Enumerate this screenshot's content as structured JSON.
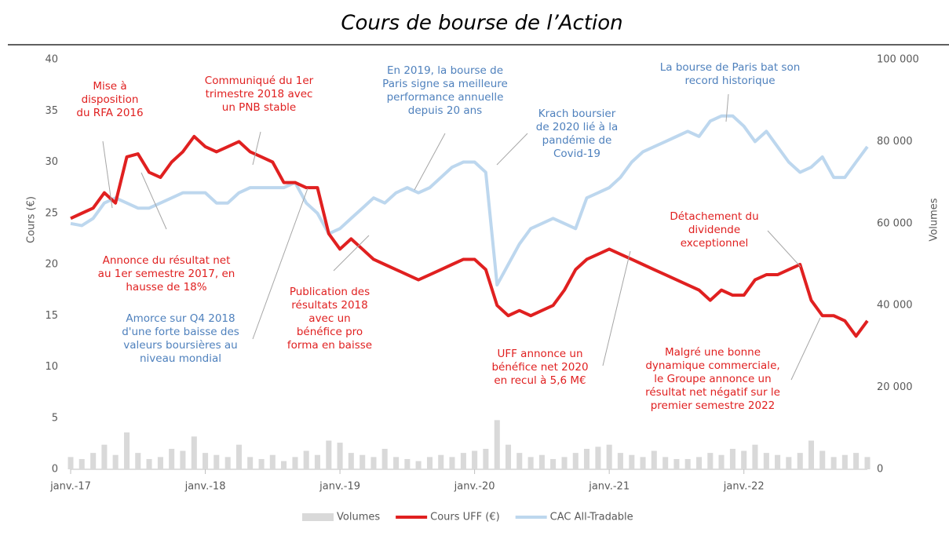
{
  "chart_data": {
    "type": "line",
    "title": "Cours de bourse de l’Action",
    "ylabel": "Cours (€)",
    "y2label": "Volumes",
    "xlim": [
      2017,
      2022.917
    ],
    "xticks": [
      {
        "value": 2017,
        "label": "janv.-17"
      },
      {
        "value": 2018,
        "label": "janv.-18"
      },
      {
        "value": 2019,
        "label": "janv.-19"
      },
      {
        "value": 2020,
        "label": "janv.-20"
      },
      {
        "value": 2021,
        "label": "janv.-21"
      },
      {
        "value": 2022,
        "label": "janv.-22"
      }
    ],
    "ylim": [
      0,
      40
    ],
    "yticks": [
      0,
      5,
      10,
      15,
      20,
      25,
      30,
      35,
      40
    ],
    "y2lim": [
      0,
      100000
    ],
    "y2ticks": [
      0,
      {
        "value": 20000,
        "label": "20 000"
      },
      {
        "value": 40000,
        "label": "40 000"
      },
      {
        "value": 60000,
        "label": "60 000"
      },
      {
        "value": 80000,
        "label": "80 000"
      },
      {
        "value": 100000,
        "label": "100 000"
      }
    ],
    "x": [
      2017,
      2017.083,
      2017.167,
      2017.25,
      2017.333,
      2017.417,
      2017.5,
      2017.583,
      2017.667,
      2017.75,
      2017.833,
      2017.917,
      2018,
      2018.083,
      2018.167,
      2018.25,
      2018.333,
      2018.417,
      2018.5,
      2018.583,
      2018.667,
      2018.75,
      2018.833,
      2018.917,
      2019,
      2019.083,
      2019.167,
      2019.25,
      2019.333,
      2019.417,
      2019.5,
      2019.583,
      2019.667,
      2019.75,
      2019.833,
      2019.917,
      2020,
      2020.083,
      2020.167,
      2020.25,
      2020.333,
      2020.417,
      2020.5,
      2020.583,
      2020.667,
      2020.75,
      2020.833,
      2020.917,
      2021,
      2021.083,
      2021.167,
      2021.25,
      2021.333,
      2021.417,
      2021.5,
      2021.583,
      2021.667,
      2021.75,
      2021.833,
      2021.917,
      2022,
      2022.083,
      2022.167,
      2022.25,
      2022.333,
      2022.417,
      2022.5,
      2022.583,
      2022.667,
      2022.75,
      2022.833,
      2022.917
    ],
    "series": [
      {
        "name": "Volumes",
        "color": "#d9d9d9",
        "axis": "y2",
        "kind": "bar",
        "values": [
          3000,
          2500,
          4000,
          6000,
          3500,
          9000,
          4000,
          2500,
          3000,
          5000,
          4500,
          8000,
          4000,
          3500,
          3000,
          6000,
          3000,
          2500,
          3500,
          2000,
          3000,
          4500,
          3500,
          7000,
          6500,
          4000,
          3500,
          3000,
          5000,
          3000,
          2500,
          2000,
          3000,
          3500,
          3000,
          4000,
          4500,
          5000,
          12000,
          6000,
          4000,
          3000,
          3500,
          2500,
          3000,
          4000,
          5000,
          5500,
          6000,
          4000,
          3500,
          3000,
          4500,
          3000,
          2500,
          2500,
          3000,
          4000,
          3500,
          5000,
          4500,
          6000,
          4000,
          3500,
          3000,
          4000,
          7000,
          4500,
          3000,
          3500,
          4000,
          3000
        ]
      },
      {
        "name": "Cours UFF (€)",
        "color": "#e02020",
        "kind": "line",
        "values": [
          24.5,
          25,
          25.5,
          27,
          26,
          30.5,
          30.8,
          29,
          28.5,
          30,
          31,
          32.5,
          31.5,
          31,
          31.5,
          32,
          31,
          30.5,
          30,
          28,
          28,
          27.5,
          27.5,
          23,
          21.5,
          22.5,
          21.5,
          20.5,
          20,
          19.5,
          19,
          18.5,
          19,
          19.5,
          20,
          20.5,
          20.5,
          19.5,
          16,
          15,
          15.5,
          15,
          15.5,
          16,
          17.5,
          19.5,
          20.5,
          21,
          21.5,
          21,
          20.5,
          20,
          19.5,
          19,
          18.5,
          18,
          17.5,
          16.5,
          17.5,
          17,
          17,
          18.5,
          19,
          19,
          19.5,
          20,
          16.5,
          15,
          15,
          14.5,
          13,
          14.5
        ]
      },
      {
        "name": "CAC All-Tradable",
        "color": "#bdd7ee",
        "kind": "line",
        "values": [
          24,
          23.8,
          24.5,
          26,
          26.5,
          26,
          25.5,
          25.5,
          26,
          26.5,
          27,
          27,
          27,
          26,
          26,
          27,
          27.5,
          27.5,
          27.5,
          27.5,
          28,
          26,
          25,
          23,
          23.5,
          24.5,
          25.5,
          26.5,
          26,
          27,
          27.5,
          27,
          27.5,
          28.5,
          29.5,
          30,
          30,
          29,
          18,
          20,
          22,
          23.5,
          24,
          24.5,
          24,
          23.5,
          26.5,
          27,
          27.5,
          28.5,
          30,
          31,
          31.5,
          32,
          32.5,
          33,
          32.5,
          34,
          34.5,
          34.5,
          33.5,
          32,
          33,
          31.5,
          30,
          29,
          29.5,
          30.5,
          28.5,
          28.5,
          30,
          31.5
        ]
      }
    ],
    "annotations": [
      {
        "color": "#e02020",
        "lines": [
          "Mise à",
          "disposition",
          "du RFA 2016"
        ]
      },
      {
        "color": "#e02020",
        "lines": [
          "Communiqué du 1er",
          "trimestre 2018 avec",
          "un PNB stable"
        ]
      },
      {
        "color": "#4f81bd",
        "lines": [
          "En 2019, la bourse de",
          "Paris signe sa meilleure",
          "performance annuelle",
          "depuis 20 ans"
        ]
      },
      {
        "color": "#4f81bd",
        "lines": [
          "Krach boursier",
          "de 2020 lié à la",
          "pandémie de",
          "Covid-19"
        ]
      },
      {
        "color": "#4f81bd",
        "lines": [
          "La bourse de Paris bat son",
          "record historique"
        ]
      },
      {
        "color": "#e02020",
        "lines": [
          "Détachement du",
          "dividende",
          "exceptionnel"
        ]
      },
      {
        "color": "#e02020",
        "lines": [
          "Annonce du résultat net",
          "au 1er semestre 2017, en",
          "hausse de 18%"
        ]
      },
      {
        "color": "#4f81bd",
        "lines": [
          "Amorce sur Q4 2018",
          "d'une forte baisse des",
          "valeurs boursières au",
          "niveau mondial"
        ]
      },
      {
        "color": "#e02020",
        "lines": [
          "Publication des",
          "résultats 2018",
          "avec un",
          "bénéfice pro",
          "forma en baisse"
        ]
      },
      {
        "color": "#e02020",
        "lines": [
          "UFF annonce un",
          "bénéfice net 2020",
          "en recul à 5,6 M€"
        ]
      },
      {
        "color": "#e02020",
        "lines": [
          "Malgré une bonne",
          "dynamique commerciale,",
          "le Groupe annonce un",
          "résultat net négatif sur le",
          "premier semestre 2022"
        ]
      }
    ]
  }
}
